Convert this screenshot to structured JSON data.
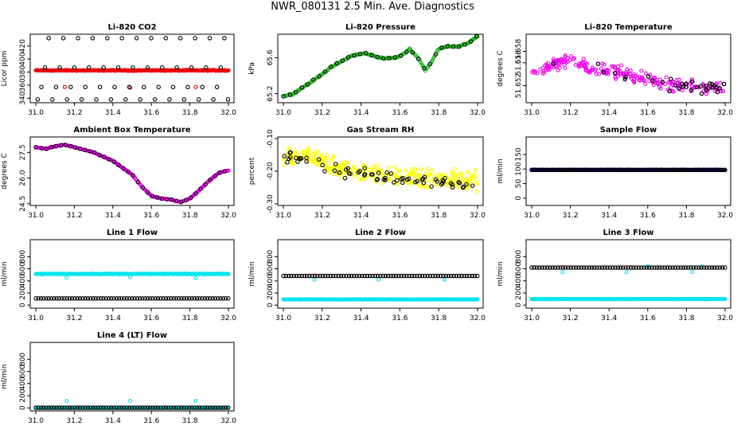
{
  "figure_title": "NWR_080131  2.5 Min. Ave. Diagnostics",
  "colors": {
    "black": "#000000",
    "red": "#ee0000",
    "green": "#22bb22",
    "magenta": "#ee00ee",
    "yellow": "#ffff00",
    "blue": "#1010a0",
    "cyan": "#00e5ee"
  },
  "chart_data": [
    {
      "type": "scatter",
      "title": "Li-820 CO2",
      "ylabel": "Licor ppm",
      "xlim": [
        31.0,
        32.0
      ],
      "ylim": [
        333,
        438
      ],
      "yticks": [
        "340",
        "360",
        "380",
        "400",
        "420"
      ],
      "ytick_values": [
        340,
        360,
        380,
        400,
        420
      ],
      "xticks": [
        "31.0",
        "31.2",
        "31.4",
        "31.6",
        "31.8",
        "32.0"
      ],
      "xtick_values": [
        31.0,
        31.2,
        31.4,
        31.6,
        31.8,
        32.0
      ],
      "series": [
        {
          "name": "line values",
          "color": "red",
          "kind": "band",
          "y": 382.5,
          "spread": 1.0,
          "extra": [
            [
              31.15,
              357
            ],
            [
              31.49,
              356
            ],
            [
              31.83,
              357
            ]
          ]
        },
        {
          "name": "reference",
          "color": "black",
          "kind": "levels",
          "levels": [
            338,
            357,
            387,
            432
          ],
          "step": 0.019
        }
      ]
    },
    {
      "type": "scatter",
      "title": "Li-820 Pressure",
      "ylabel": "kPa",
      "xlim": [
        31.0,
        32.0
      ],
      "ylim": [
        65.1,
        65.86
      ],
      "yticks": [
        "65.2",
        "65.6"
      ],
      "ytick_values": [
        65.2,
        65.6
      ],
      "xticks": [
        "31.0",
        "31.2",
        "31.4",
        "31.6",
        "31.8",
        "32.0"
      ],
      "xtick_values": [
        31.0,
        31.2,
        31.4,
        31.6,
        31.8,
        32.0
      ],
      "series": [
        {
          "name": "pressure",
          "color": "green",
          "kind": "curve",
          "noise": 0.01,
          "points": [
            [
              31.0,
              65.17
            ],
            [
              31.05,
              65.2
            ],
            [
              31.15,
              65.34
            ],
            [
              31.25,
              65.5
            ],
            [
              31.35,
              65.62
            ],
            [
              31.42,
              65.65
            ],
            [
              31.48,
              65.61
            ],
            [
              31.52,
              65.59
            ],
            [
              31.58,
              65.6
            ],
            [
              31.62,
              65.64
            ],
            [
              31.65,
              65.7
            ],
            [
              31.7,
              65.58
            ],
            [
              31.73,
              65.46
            ],
            [
              31.76,
              65.54
            ],
            [
              31.8,
              65.7
            ],
            [
              31.85,
              65.73
            ],
            [
              31.9,
              65.72
            ],
            [
              31.95,
              65.76
            ],
            [
              32.0,
              65.84
            ]
          ]
        },
        {
          "name": "reference",
          "color": "black",
          "kind": "sample",
          "step": 0.03,
          "from": "pressure"
        }
      ]
    },
    {
      "type": "scatter",
      "title": "Li-820 Temperature",
      "ylabel": "degrees C",
      "xlim": [
        31.0,
        32.0
      ],
      "ylim": [
        51.649,
        51.661
      ],
      "yticks": [
        "51.652",
        "51.656",
        "51.658"
      ],
      "ytick_values": [
        51.652,
        51.656,
        51.658
      ],
      "xticks": [
        "31.0",
        "31.2",
        "31.4",
        "31.6",
        "31.8",
        "32.0"
      ],
      "xtick_values": [
        31.0,
        31.2,
        31.4,
        31.6,
        31.8,
        32.0
      ],
      "series": [
        {
          "name": "temperature",
          "color": "magenta",
          "kind": "noisy",
          "count": 260,
          "noise": 0.0016,
          "points": [
            [
              31.0,
              51.654
            ],
            [
              31.1,
              51.6555
            ],
            [
              31.2,
              51.6565
            ],
            [
              31.3,
              51.655
            ],
            [
              31.5,
              51.654
            ],
            [
              31.6,
              51.653
            ],
            [
              31.75,
              51.652
            ],
            [
              32.0,
              51.6515
            ]
          ]
        },
        {
          "name": "reference",
          "color": "black",
          "kind": "sample",
          "step": 0.03,
          "from": "temperature"
        }
      ]
    },
    {
      "type": "scatter",
      "title": "Ambient Box Temperature",
      "ylabel": "degrees C",
      "xlim": [
        31.0,
        32.0
      ],
      "ylim": [
        24.4,
        28.4
      ],
      "yticks": [
        "24.5",
        "26.0",
        "27.5"
      ],
      "ytick_values": [
        24.5,
        26.0,
        27.5
      ],
      "xticks": [
        "31.0",
        "31.2",
        "31.4",
        "31.6",
        "31.8",
        "32.0"
      ],
      "xtick_values": [
        31.0,
        31.2,
        31.4,
        31.6,
        31.8,
        32.0
      ],
      "series": [
        {
          "name": "box temperature",
          "color": "magenta",
          "kind": "curve",
          "noise": 0.02,
          "points": [
            [
              31.0,
              27.8
            ],
            [
              31.05,
              27.7
            ],
            [
              31.1,
              27.85
            ],
            [
              31.15,
              27.95
            ],
            [
              31.2,
              27.8
            ],
            [
              31.3,
              27.5
            ],
            [
              31.4,
              27.0
            ],
            [
              31.5,
              26.2
            ],
            [
              31.55,
              25.5
            ],
            [
              31.6,
              24.95
            ],
            [
              31.65,
              24.8
            ],
            [
              31.7,
              24.75
            ],
            [
              31.75,
              24.6
            ],
            [
              31.8,
              24.8
            ],
            [
              31.85,
              25.3
            ],
            [
              31.9,
              25.85
            ],
            [
              31.95,
              26.3
            ],
            [
              32.0,
              26.45
            ]
          ]
        },
        {
          "name": "reference",
          "color": "black",
          "kind": "sample",
          "step": 0.025,
          "from": "box temperature"
        }
      ]
    },
    {
      "type": "scatter",
      "title": "Gas Stream RH",
      "ylabel": "percent",
      "xlim": [
        31.0,
        32.0
      ],
      "ylim": [
        -0.305,
        -0.095
      ],
      "yticks": [
        "-0.30",
        "-0.20",
        "-0.10"
      ],
      "ytick_values": [
        -0.3,
        -0.2,
        -0.1
      ],
      "xticks": [
        "31.0",
        "31.2",
        "31.4",
        "31.6",
        "31.8",
        "32.0"
      ],
      "xtick_values": [
        31.0,
        31.2,
        31.4,
        31.6,
        31.8,
        32.0
      ],
      "series": [
        {
          "name": "relative humidity",
          "color": "yellow",
          "kind": "noisy",
          "count": 320,
          "noise": 0.04,
          "points": [
            [
              31.0,
              -0.16
            ],
            [
              31.1,
              -0.15
            ],
            [
              31.3,
              -0.19
            ],
            [
              31.5,
              -0.21
            ],
            [
              31.7,
              -0.22
            ],
            [
              32.0,
              -0.23
            ]
          ]
        },
        {
          "name": "reference",
          "color": "black",
          "kind": "noisy",
          "count": 70,
          "noise": 0.03,
          "points": [
            [
              31.0,
              -0.16
            ],
            [
              31.1,
              -0.155
            ],
            [
              31.3,
              -0.2
            ],
            [
              31.5,
              -0.215
            ],
            [
              31.7,
              -0.23
            ],
            [
              32.0,
              -0.24
            ]
          ]
        }
      ]
    },
    {
      "type": "scatter",
      "title": "Sample Flow",
      "ylabel": "ml/min",
      "xlim": [
        31.0,
        32.0
      ],
      "ylim": [
        -25,
        210
      ],
      "yticks": [
        "0",
        "50",
        "100",
        "150"
      ],
      "ytick_values": [
        0,
        50,
        100,
        150
      ],
      "xticks": [
        "31.0",
        "31.2",
        "31.4",
        "31.6",
        "31.8",
        "32.0"
      ],
      "xtick_values": [
        31.0,
        31.2,
        31.4,
        31.6,
        31.8,
        32.0
      ],
      "series": [
        {
          "name": "sample flow",
          "color": "blue",
          "kind": "band",
          "y": 97,
          "spread": 1.2,
          "extra": []
        },
        {
          "name": "reference",
          "color": "black",
          "kind": "dense",
          "y": 97,
          "step": 0.01
        }
      ]
    },
    {
      "type": "scatter",
      "title": "Line 1 Flow",
      "ylabel": "ml/min",
      "xlim": [
        31.0,
        32.0
      ],
      "ylim": [
        -50,
        1080
      ],
      "yticks": [
        "0",
        "200",
        "400",
        "600",
        "800"
      ],
      "ytick_values": [
        0,
        200,
        400,
        600,
        800
      ],
      "xticks": [
        "31.0",
        "31.2",
        "31.4",
        "31.6",
        "31.8",
        "32.0"
      ],
      "xtick_values": [
        31.0,
        31.2,
        31.4,
        31.6,
        31.8,
        32.0
      ],
      "series": [
        {
          "name": "line 1 cyan",
          "color": "cyan",
          "kind": "band",
          "y": 515,
          "spread": 8,
          "extra": [
            [
              31.16,
              455
            ],
            [
              31.49,
              465
            ],
            [
              31.83,
              450
            ]
          ]
        },
        {
          "name": "reference",
          "color": "black",
          "kind": "dense",
          "y": 110,
          "step": 0.0135
        }
      ]
    },
    {
      "type": "scatter",
      "title": "Line 2 Flow",
      "ylabel": "ml/min",
      "xlim": [
        31.0,
        32.0
      ],
      "ylim": [
        -50,
        1080
      ],
      "yticks": [
        "0",
        "200",
        "400",
        "600",
        "800"
      ],
      "ytick_values": [
        0,
        200,
        400,
        600,
        800
      ],
      "xticks": [
        "31.0",
        "31.2",
        "31.4",
        "31.6",
        "31.8",
        "32.0"
      ],
      "xtick_values": [
        31.0,
        31.2,
        31.4,
        31.6,
        31.8,
        32.0
      ],
      "series": [
        {
          "name": "line 2 cyan",
          "color": "cyan",
          "kind": "band",
          "y": 95,
          "spread": 4,
          "extra": [
            [
              31.16,
              420
            ],
            [
              31.49,
              420
            ],
            [
              31.83,
              420
            ]
          ]
        },
        {
          "name": "reference",
          "color": "black",
          "kind": "dense",
          "y": 482,
          "step": 0.0135
        }
      ]
    },
    {
      "type": "scatter",
      "title": "Line 3 Flow",
      "ylabel": "ml/min",
      "xlim": [
        31.0,
        32.0
      ],
      "ylim": [
        -50,
        1080
      ],
      "yticks": [
        "0",
        "200",
        "400",
        "600",
        "800"
      ],
      "ytick_values": [
        0,
        200,
        400,
        600,
        800
      ],
      "xticks": [
        "31.0",
        "31.2",
        "31.4",
        "31.6",
        "31.8",
        "32.0"
      ],
      "xtick_values": [
        31.0,
        31.2,
        31.4,
        31.6,
        31.8,
        32.0
      ],
      "series": [
        {
          "name": "line 3 cyan",
          "color": "cyan",
          "kind": "band",
          "y": 100,
          "spread": 4,
          "extra": [
            [
              31.0,
              620
            ],
            [
              31.16,
              545
            ],
            [
              31.49,
              545
            ],
            [
              31.6,
              640
            ],
            [
              31.83,
              545
            ],
            [
              31.88,
              640
            ]
          ]
        },
        {
          "name": "reference",
          "color": "black",
          "kind": "dense",
          "y": 620,
          "step": 0.0135
        }
      ]
    },
    {
      "type": "scatter",
      "title": "Line 4 (LT) Flow",
      "ylabel": "ml/min",
      "xlim": [
        31.0,
        32.0
      ],
      "ylim": [
        -50,
        1080
      ],
      "yticks": [
        "0",
        "200",
        "400",
        "600",
        "800"
      ],
      "ytick_values": [
        0,
        200,
        400,
        600,
        800
      ],
      "xticks": [
        "31.0",
        "31.2",
        "31.4",
        "31.6",
        "31.8",
        "32.0"
      ],
      "xtick_values": [
        31.0,
        31.2,
        31.4,
        31.6,
        31.8,
        32.0
      ],
      "series": [
        {
          "name": "line 4 cyan",
          "color": "cyan",
          "kind": "band",
          "y": 2,
          "spread": 2,
          "extra": [
            [
              31.16,
              115
            ],
            [
              31.49,
              115
            ],
            [
              31.83,
              115
            ]
          ]
        },
        {
          "name": "reference",
          "color": "black",
          "kind": "dense",
          "y": 2,
          "step": 0.0135
        }
      ]
    }
  ]
}
